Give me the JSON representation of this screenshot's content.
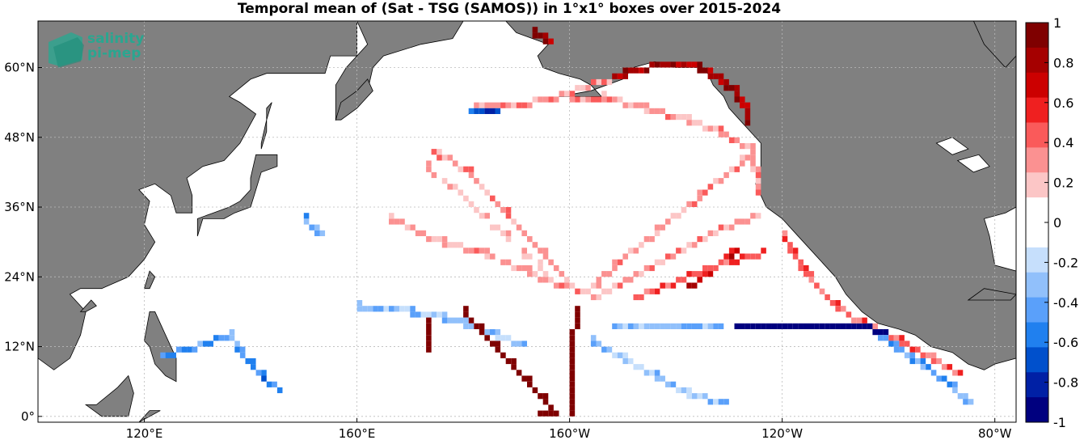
{
  "chart_data": {
    "type": "heatmap",
    "title": "Temporal mean of (Sat - TSG (SAMOS)) in 1°x1° boxes over 2015-2024",
    "projection": "equirectangular",
    "lon_range": [
      100,
      284
    ],
    "lat_range": [
      -1,
      68
    ],
    "x_ticks": [
      {
        "label": "120°E",
        "lon": 120
      },
      {
        "label": "160°E",
        "lon": 160
      },
      {
        "label": "160°W",
        "lon": 200
      },
      {
        "label": "120°W",
        "lon": 240
      },
      {
        "label": "80°W",
        "lon": 280
      }
    ],
    "y_ticks": [
      {
        "label": "0°",
        "lat": 0
      },
      {
        "label": "12°N",
        "lat": 12
      },
      {
        "label": "24°N",
        "lat": 24
      },
      {
        "label": "36°N",
        "lat": 36
      },
      {
        "label": "48°N",
        "lat": 48
      },
      {
        "label": "60°N",
        "lat": 60
      }
    ],
    "grid": true,
    "colorbar": {
      "range": [
        -1,
        1
      ],
      "ticks": [
        "1",
        "0.8",
        "0.6",
        "0.4",
        "0.2",
        "0",
        "-0.2",
        "-0.4",
        "-0.6",
        "-0.8",
        "-1"
      ],
      "colors": [
        "#7f0000",
        "#a50000",
        "#cc0000",
        "#ef2020",
        "#fa5a5a",
        "#fb9191",
        "#fcc6c6",
        "#ffffff",
        "#ffffff",
        "#c6dffc",
        "#91c0fb",
        "#5aa0fa",
        "#2080ef",
        "#0050cc",
        "#0020a5",
        "#00007f"
      ]
    },
    "tracks": [
      {
        "name": "alaska-coast",
        "value": 0.8,
        "points": [
          [
            208,
            58
          ],
          [
            212,
            59.5
          ],
          [
            218,
            60.5
          ],
          [
            224,
            60
          ],
          [
            228,
            58.5
          ],
          [
            231,
            56
          ],
          [
            233,
            53
          ],
          [
            234,
            50
          ]
        ]
      },
      {
        "name": "gulf-of-alaska-south",
        "value": 0.3,
        "points": [
          [
            200,
            54
          ],
          [
            206,
            55
          ],
          [
            214,
            53
          ],
          [
            222,
            51
          ],
          [
            228,
            49
          ],
          [
            234,
            46
          ],
          [
            235,
            42
          ],
          [
            236,
            38
          ]
        ]
      },
      {
        "name": "aleutian-line",
        "value": 0.3,
        "points": [
          [
            182,
            53
          ],
          [
            190,
            53.5
          ],
          [
            196,
            54.5
          ],
          [
            204,
            57
          ],
          [
            210,
            58.5
          ]
        ]
      },
      {
        "name": "aleutian-blue",
        "value": -0.7,
        "points": [
          [
            181,
            52
          ],
          [
            184,
            52
          ],
          [
            187,
            52
          ]
        ]
      },
      {
        "name": "bering-top",
        "value": 0.8,
        "points": [
          [
            193,
            66
          ],
          [
            195,
            65
          ],
          [
            197,
            64
          ]
        ]
      },
      {
        "name": "hawaii-seattle-1",
        "value": 0.3,
        "points": [
          [
            203,
            21
          ],
          [
            210,
            27
          ],
          [
            218,
            33
          ],
          [
            226,
            39
          ],
          [
            234,
            45
          ]
        ]
      },
      {
        "name": "hawaii-sf",
        "value": 0.3,
        "points": [
          [
            204,
            20
          ],
          [
            212,
            24
          ],
          [
            220,
            28
          ],
          [
            228,
            32
          ],
          [
            236,
            35
          ]
        ]
      },
      {
        "name": "hawaii-west-1",
        "value": 0.3,
        "points": [
          [
            202,
            21
          ],
          [
            195,
            28
          ],
          [
            188,
            35
          ],
          [
            181,
            42
          ],
          [
            174,
            46
          ]
        ]
      },
      {
        "name": "hawaii-west-2",
        "value": 0.25,
        "points": [
          [
            200,
            22
          ],
          [
            192,
            25
          ],
          [
            184,
            28
          ],
          [
            176,
            30
          ],
          [
            166,
            34
          ]
        ]
      },
      {
        "name": "hawaii-japan",
        "value": 0.2,
        "points": [
          [
            198,
            23
          ],
          [
            188,
            31
          ],
          [
            180,
            38
          ],
          [
            172,
            44
          ]
        ]
      },
      {
        "name": "diag-dark-1",
        "value": 0.95,
        "points": [
          [
            180,
            18
          ],
          [
            183,
            15
          ],
          [
            186,
            12
          ],
          [
            189,
            9
          ],
          [
            192,
            6
          ],
          [
            195,
            3
          ],
          [
            197,
            0.5
          ]
        ]
      },
      {
        "name": "meridian-dark-1",
        "value": 0.95,
        "points": [
          [
            200,
            0
          ],
          [
            200.3,
            5
          ],
          [
            200.7,
            10
          ],
          [
            201,
            15
          ],
          [
            201.2,
            19
          ]
        ]
      },
      {
        "name": "bottom-dark",
        "value": 0.95,
        "points": [
          [
            194,
            0.3
          ],
          [
            198,
            0.3
          ]
        ]
      },
      {
        "name": "equatorial-blue-dark",
        "value": -0.95,
        "points": [
          [
            231,
            15.5
          ],
          [
            238,
            15.5
          ],
          [
            246,
            15.5
          ],
          [
            254,
            15.5
          ],
          [
            260,
            14.5
          ]
        ]
      },
      {
        "name": "equatorial-blue-mid",
        "value": -0.35,
        "points": [
          [
            208,
            15
          ],
          [
            218,
            15
          ],
          [
            228,
            15.5
          ]
        ]
      },
      {
        "name": "mexico-coast",
        "value": 0.4,
        "points": [
          [
            240,
            31
          ],
          [
            245,
            24
          ],
          [
            250,
            19
          ],
          [
            255,
            16
          ],
          [
            262,
            13
          ],
          [
            268,
            10
          ],
          [
            274,
            7
          ]
        ]
      },
      {
        "name": "sd-hawaii",
        "value": 0.5,
        "points": [
          [
            236,
            28
          ],
          [
            228,
            26
          ],
          [
            220,
            23
          ],
          [
            212,
            20
          ]
        ]
      },
      {
        "name": "red-thick-mid",
        "value": 0.7,
        "points": [
          [
            222,
            22
          ],
          [
            228,
            26
          ],
          [
            232,
            29
          ]
        ]
      },
      {
        "name": "south-scatter-1",
        "value": -0.3,
        "points": [
          [
            160,
            19
          ],
          [
            170,
            18
          ],
          [
            176,
            17
          ],
          [
            180,
            16
          ],
          [
            186,
            14
          ],
          [
            192,
            12
          ]
        ]
      },
      {
        "name": "philippines",
        "value": -0.5,
        "points": [
          [
            123,
            10
          ],
          [
            130,
            12
          ],
          [
            136,
            14
          ],
          [
            140,
            9
          ],
          [
            146,
            4
          ]
        ]
      },
      {
        "name": "west-dark-red",
        "value": 0.9,
        "points": [
          [
            173,
            17
          ],
          [
            173.5,
            14
          ],
          [
            174,
            11
          ]
        ]
      },
      {
        "name": "japan-dots",
        "value": -0.4,
        "points": [
          [
            150,
            34
          ],
          [
            152,
            32
          ],
          [
            154,
            31
          ]
        ]
      },
      {
        "name": "tropical-blue-1",
        "value": -0.3,
        "points": [
          [
            204,
            13
          ],
          [
            210,
            10
          ],
          [
            216,
            7
          ],
          [
            222,
            4
          ],
          [
            230,
            2
          ]
        ]
      },
      {
        "name": "panama-blue",
        "value": -0.4,
        "points": [
          [
            258,
            14
          ],
          [
            266,
            9
          ],
          [
            272,
            5
          ],
          [
            276,
            2
          ]
        ]
      }
    ]
  },
  "logo": {
    "line1": "salinity",
    "line2": "pi-mep"
  }
}
